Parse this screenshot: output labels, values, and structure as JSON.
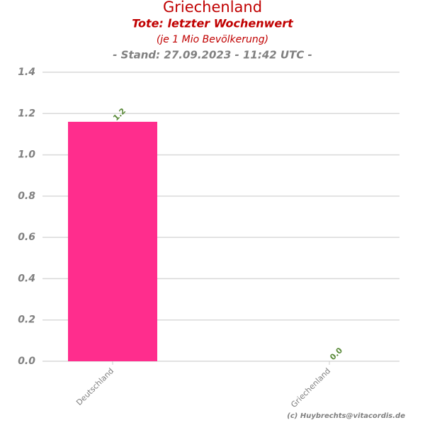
{
  "chart_data": {
    "type": "bar",
    "title": "Griechenland",
    "subtitle": "Tote: letzter Wochenwert",
    "subtitle2": "(je 1 Mio Bevölkerung)",
    "subtitle3": "- Stand: 27.09.2023 - 11:42 UTC -",
    "credit": "(c) Huybrechts@vitacordis.de",
    "categories": [
      "Deutschland",
      "Griechenland"
    ],
    "values": [
      1.16,
      0
    ],
    "value_labels": [
      "1.2",
      "0.0"
    ],
    "color": "#ff2d8d",
    "ylim": [
      0,
      1.4
    ],
    "yticks": [
      {
        "value": 0,
        "label": "0.0"
      },
      0.2,
      0.4,
      0.6,
      0.8,
      {
        "value": 1,
        "label": "1.0"
      },
      1.2,
      1.4
    ],
    "grid": true
  }
}
